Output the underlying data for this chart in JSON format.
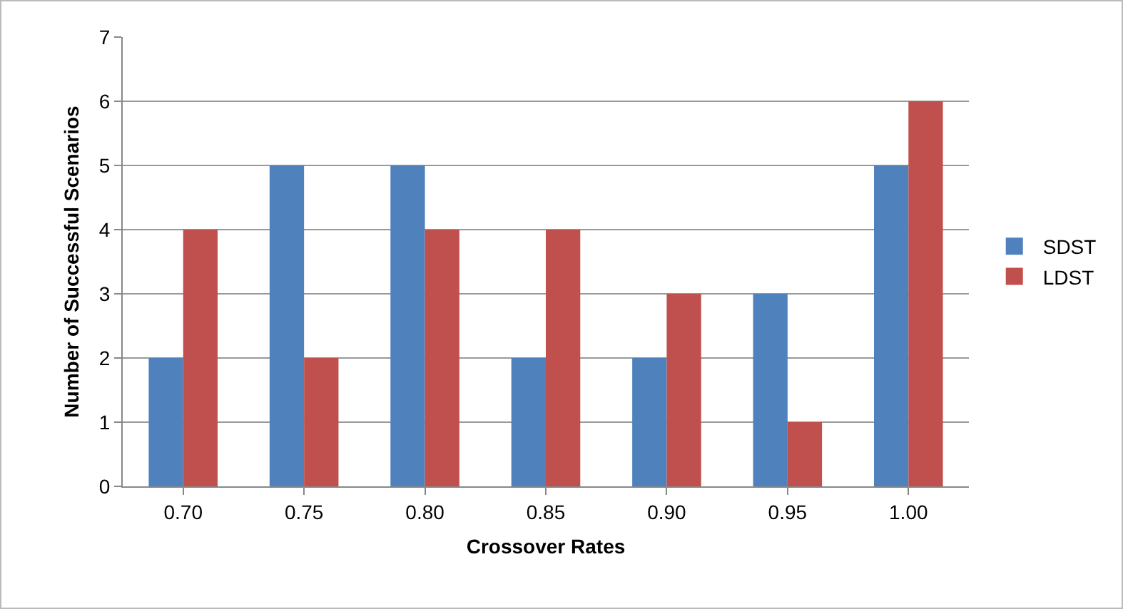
{
  "chart_data": {
    "type": "bar",
    "xlabel": "Crossover Rates",
    "ylabel": "Number of Successful Scenarios",
    "categories": [
      "0.70",
      "0.75",
      "0.80",
      "0.85",
      "0.90",
      "0.95",
      "1.00"
    ],
    "series": [
      {
        "name": "SDST",
        "color": "#4f81bd",
        "values": [
          2,
          5,
          5,
          2,
          2,
          3,
          5
        ]
      },
      {
        "name": "LDST",
        "color": "#c0504d",
        "values": [
          4,
          2,
          4,
          4,
          3,
          1,
          6
        ]
      }
    ],
    "ylim": [
      0,
      7
    ],
    "yticks": [
      0,
      1,
      2,
      3,
      4,
      5,
      6,
      7
    ],
    "grid": "y",
    "legend": "right"
  }
}
